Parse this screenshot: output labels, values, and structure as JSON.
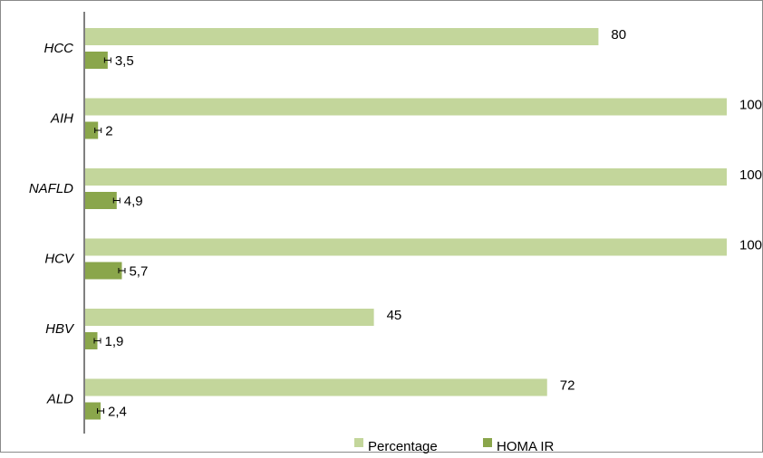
{
  "chart_data": {
    "type": "bar",
    "orientation": "horizontal",
    "categories": [
      "HCC",
      "AIH",
      "NAFLD",
      "HCV",
      "HBV",
      "ALD"
    ],
    "series": [
      {
        "name": "Percentage",
        "color": "#c3d69b",
        "values": [
          80,
          100,
          100,
          100,
          45,
          72
        ],
        "labels": [
          "80",
          "100",
          "100",
          "100",
          "45",
          "72"
        ]
      },
      {
        "name": "HOMA IR",
        "color": "#8aa64b",
        "values": [
          3.5,
          2,
          4.9,
          5.7,
          1.9,
          2.4
        ],
        "labels": [
          "3,5",
          "2",
          "4,9",
          "5,7",
          "1,9",
          "2,4"
        ],
        "error_bars": true
      }
    ],
    "xlim": [
      0,
      100
    ],
    "grid": false,
    "legend_position": "bottom"
  }
}
